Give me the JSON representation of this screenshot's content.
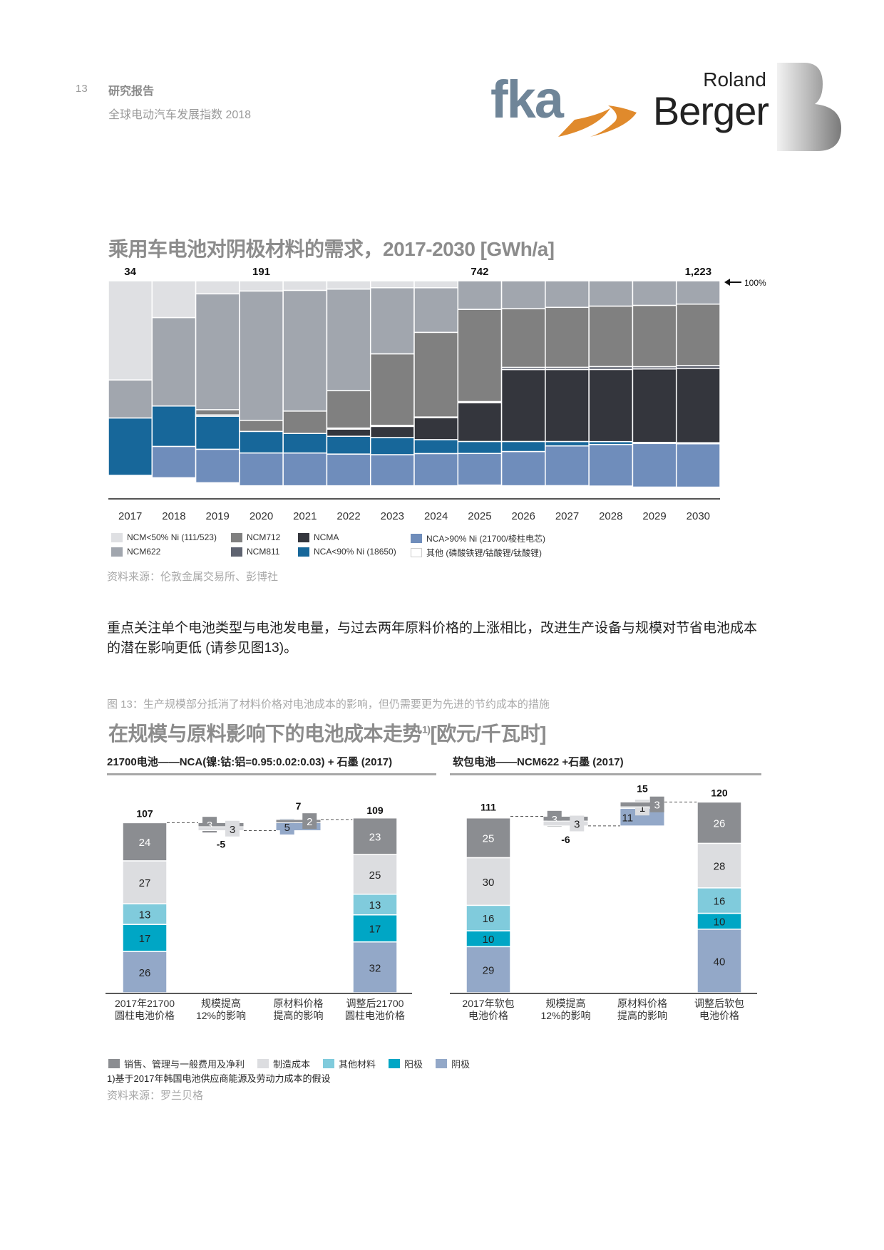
{
  "header": {
    "page_number": "13",
    "report_label": "研究报告",
    "report_subtitle": "全球电动汽车发展指数 2018",
    "logo_fka": "fka",
    "logo_rb_line1": "Roland",
    "logo_rb_line2": "Berger"
  },
  "colors": {
    "ncm_lt50": "#dfe0e3",
    "ncm622": "#a1a6ae",
    "ncm712": "#808080",
    "ncm811": "#5e6370",
    "ncma": "#34363d",
    "nca_lt90": "#17679a",
    "nca_gt90": "#6f8dbb",
    "other": "#ffffff",
    "sga": "#8b8d91",
    "manufacturing": "#dcdde0",
    "other_materials": "#80cbdc",
    "anode": "#00a6c5",
    "cathode": "#93a8c8",
    "fka_blue": "#6f8598",
    "fka_orange": "#e08a2c"
  },
  "chart_data": [
    {
      "type": "bar",
      "stacked": "100%",
      "title": "乘用车电池对阴极材料的需求，2017-2030 [GWh/a]",
      "categories": [
        "2017",
        "2018",
        "2019",
        "2020",
        "2021",
        "2022",
        "2023",
        "2024",
        "2025",
        "2026",
        "2027",
        "2028",
        "2029",
        "2030"
      ],
      "totals": [
        "34",
        null,
        null,
        "191",
        null,
        null,
        null,
        null,
        "742",
        null,
        null,
        null,
        null,
        "1,223"
      ],
      "reference_label": "100%",
      "series": [
        {
          "name": "其他 (磷酸铁锂/钴酸锂/钛酸锂)",
          "key": "other",
          "values": [
            10.5,
            9.4,
            7.1,
            5.7,
            5.7,
            5.7,
            5.7,
            5.7,
            6.0,
            5.7,
            5.7,
            5.5,
            5.0,
            5.0
          ]
        },
        {
          "name": "NCA>90% Ni (21700/棱柱电芯)",
          "key": "nca_gt90",
          "values": [
            0,
            14.4,
            15.4,
            15.1,
            15.1,
            14.6,
            14.3,
            14.8,
            14.5,
            15.7,
            18.1,
            18.9,
            19.7,
            19.7
          ]
        },
        {
          "name": "NCA<90% Ni (18650)",
          "key": "nca_lt90",
          "values": [
            26.4,
            18.6,
            15.2,
            9.9,
            9.0,
            8.2,
            7.9,
            6.4,
            5.5,
            4.6,
            2.0,
            1.3,
            0.5,
            0.5
          ]
        },
        {
          "name": "NCMA",
          "key": "ncma",
          "values": [
            0,
            0,
            0,
            0,
            0,
            3.3,
            5.1,
            10.1,
            17.8,
            33.0,
            32.8,
            32.8,
            33.2,
            33.8
          ]
        },
        {
          "name": "NCM811",
          "key": "ncm811",
          "values": [
            0,
            0,
            0.6,
            0,
            0,
            0.5,
            0.5,
            0.3,
            0.5,
            1.0,
            1.0,
            1.3,
            1.0,
            1.3
          ]
        },
        {
          "name": "NCM712",
          "key": "ncm712",
          "values": [
            0,
            0,
            2.4,
            5.1,
            10.3,
            17.2,
            32.9,
            38.9,
            42.3,
            26.9,
            27.3,
            27.5,
            27.7,
            27.9
          ]
        },
        {
          "name": "NCM622",
          "key": "ncm622",
          "values": [
            17.5,
            40.7,
            53.3,
            59.5,
            55.6,
            46.8,
            30.4,
            20.5,
            13.1,
            12.8,
            12.1,
            11.5,
            11.1,
            10.6
          ]
        },
        {
          "name": "NCM<50% Ni (111/523)",
          "key": "ncm_lt50",
          "values": [
            45.6,
            16.9,
            6.0,
            4.7,
            4.4,
            3.8,
            3.2,
            3.2,
            0,
            0,
            0,
            0,
            0,
            0
          ]
        }
      ],
      "ylim": [
        0,
        100
      ],
      "legend_position": "bottom",
      "legend_order": [
        [
          "NCM<50% Ni (111/523)",
          "ncm_lt50"
        ],
        [
          "NCM712",
          "ncm712"
        ],
        [
          "NCMA",
          "ncma"
        ],
        [
          "NCA>90% Ni (21700/棱柱电芯)",
          "nca_gt90"
        ],
        [
          "NCM622",
          "ncm622"
        ],
        [
          "NCM811",
          "ncm811"
        ],
        [
          "NCA<90% Ni (18650)",
          "nca_lt90"
        ],
        [
          "其他 (磷酸铁锂/钴酸锂/钛酸锂)",
          "other"
        ]
      ],
      "source": "资料来源：伦敦金属交易所、彭博社"
    },
    {
      "type": "bar",
      "variant": "waterfall",
      "title": "21700电池——NCA(镍:钴:铝=0.95:0.02:0.03) + 石墨 (2017)",
      "unit": "欧元/千瓦时",
      "categories": [
        [
          "2017年21700",
          "圆柱电池价格"
        ],
        [
          "规模提高",
          "12%的影响"
        ],
        [
          "原材料价格",
          "提高的影响"
        ],
        [
          "调整后21700",
          "圆柱电池价格"
        ]
      ],
      "start": {
        "total": 107,
        "segments": [
          [
            "cathode",
            26
          ],
          [
            "anode",
            17
          ],
          [
            "other_materials",
            13
          ],
          [
            "manufacturing",
            27
          ],
          [
            "sga",
            24
          ]
        ]
      },
      "steps": [
        {
          "total": -5,
          "segments": [
            [
              "sga",
              3
            ],
            [
              "manufacturing",
              3
            ]
          ]
        },
        {
          "total": 7,
          "segments": [
            [
              "cathode",
              5
            ],
            [
              "sga",
              2
            ]
          ]
        }
      ],
      "end": {
        "total": 109,
        "segments": [
          [
            "cathode",
            32
          ],
          [
            "anode",
            17
          ],
          [
            "other_materials",
            13
          ],
          [
            "manufacturing",
            25
          ],
          [
            "sga",
            23
          ]
        ]
      },
      "ymax": 125
    },
    {
      "type": "bar",
      "variant": "waterfall",
      "title": "软包电池——NCM622 +石墨 (2017)",
      "unit": "欧元/千瓦时",
      "categories": [
        [
          "2017年软包",
          "电池价格"
        ],
        [
          "规模提高",
          "12%的影响"
        ],
        [
          "原材料价格",
          "提高的影响"
        ],
        [
          "调整后软包",
          "电池价格"
        ]
      ],
      "start": {
        "total": 111,
        "segments": [
          [
            "cathode",
            29
          ],
          [
            "anode",
            10
          ],
          [
            "other_materials",
            16
          ],
          [
            "manufacturing",
            30
          ],
          [
            "sga",
            25
          ]
        ]
      },
      "steps": [
        {
          "total": -6,
          "segments": [
            [
              "sga",
              3
            ],
            [
              "manufacturing",
              3
            ]
          ]
        },
        {
          "total": 15,
          "segments": [
            [
              "cathode",
              11
            ],
            [
              "manufacturing",
              1
            ],
            [
              "sga",
              3
            ]
          ]
        }
      ],
      "end": {
        "total": 120,
        "segments": [
          [
            "cathode",
            40
          ],
          [
            "anode",
            10
          ],
          [
            "other_materials",
            16
          ],
          [
            "manufacturing",
            28
          ],
          [
            "sga",
            26
          ]
        ]
      },
      "ymax": 125
    }
  ],
  "section2": {
    "paragraph": "重点关注单个电池类型与电池发电量，与过去两年原料价格的上涨相比，改进生产设备与规模对节省电池成本的潜在影响更低 (请参见图13)。",
    "figure_caption": "图 13：生产规模部分抵消了材料价格对电池成本的影响，但仍需要更为先进的节约成本的措施",
    "title": "在规模与原料影响下的电池成本走势",
    "title_sup": "1)",
    "title_unit": "[欧元/千瓦时]",
    "legend": [
      [
        "销售、管理与一般费用及净利",
        "sga"
      ],
      [
        "制造成本",
        "manufacturing"
      ],
      [
        "其他材料",
        "other_materials"
      ],
      [
        "阳极",
        "anode"
      ],
      [
        "阴极",
        "cathode"
      ]
    ],
    "footnote": "1)基于2017年韩国电池供应商能源及劳动力成本的假设",
    "source": "资料来源：罗兰贝格"
  }
}
